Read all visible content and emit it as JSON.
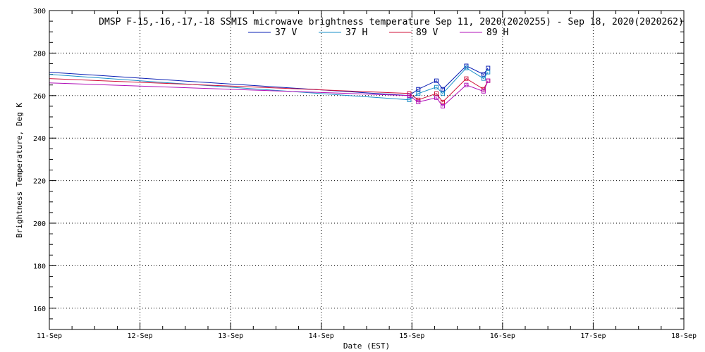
{
  "chart_data": {
    "type": "line",
    "title": "DMSP F-15,-16,-17,-18 SSMIS microwave brightness temperature Sep 11, 2020(2020255) - Sep 18, 2020(2020262)",
    "xlabel": "Date (EST)",
    "ylabel": "Brightness Temperature, Deg K",
    "x_unit": "days since 11-Sep",
    "xlim": [
      0,
      7
    ],
    "ylim": [
      150,
      300
    ],
    "x_ticks": [
      0,
      1,
      2,
      3,
      4,
      5,
      6,
      7
    ],
    "x_tick_labels": [
      "11-Sep",
      "12-Sep",
      "13-Sep",
      "14-Sep",
      "15-Sep",
      "16-Sep",
      "17-Sep",
      "18-Sep"
    ],
    "y_ticks": [
      160,
      180,
      200,
      220,
      240,
      260,
      280,
      300
    ],
    "y_tick_labels": [
      "160",
      "180",
      "200",
      "220",
      "240",
      "260",
      "280",
      "300"
    ],
    "grid": true,
    "legend_position": "top-center",
    "x": [
      0.0,
      3.97,
      4.07,
      4.27,
      4.34,
      4.6,
      4.79,
      4.84
    ],
    "series": [
      {
        "name": "37 V",
        "color": "#0a1fb4",
        "values": [
          271,
          260,
          263,
          267,
          263,
          274,
          270,
          273
        ]
      },
      {
        "name": "37 H",
        "color": "#1a8fc8",
        "values": [
          270,
          258,
          261,
          264,
          261,
          273,
          268,
          271
        ]
      },
      {
        "name": "89 V",
        "color": "#d0103a",
        "values": [
          268,
          261,
          258,
          261,
          257,
          268,
          263,
          267
        ]
      },
      {
        "name": "89 H",
        "color": "#b010b8",
        "values": [
          266,
          260,
          257,
          259,
          255,
          265,
          262,
          267
        ]
      }
    ]
  }
}
